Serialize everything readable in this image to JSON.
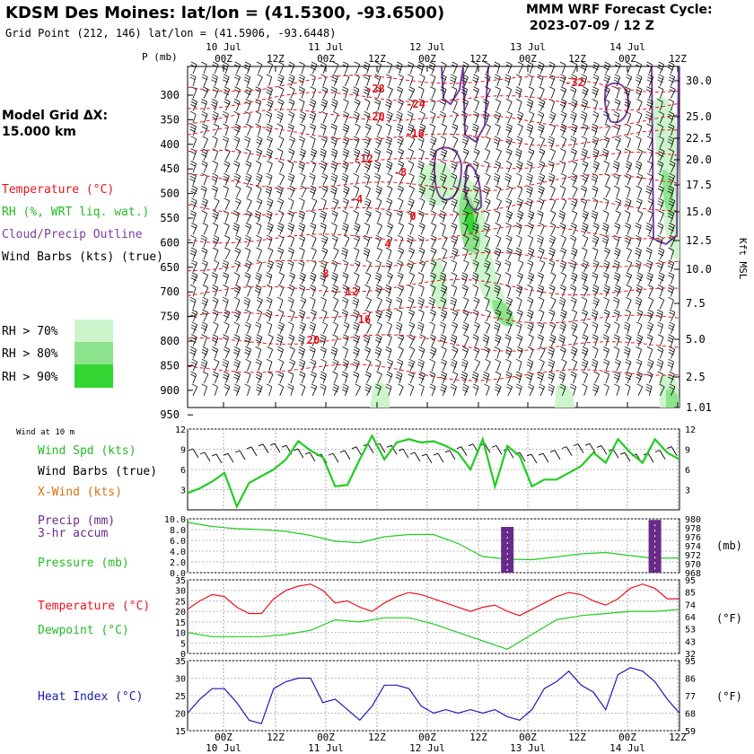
{
  "header": {
    "title": "KDSM Des Moines:  lat/lon = (41.5300, -93.6500)",
    "grid_point": "Grid Point (212, 146) lat/lon = (41.5906, -93.6448)",
    "cycle_line1": "MMM WRF Forecast Cycle:",
    "cycle_line2": "2023-07-09 / 12  Z"
  },
  "time_axis": {
    "day_labels": [
      "10 Jul",
      "11 Jul",
      "12 Jul",
      "13 Jul",
      "14 Jul"
    ],
    "hour_labels": [
      "00Z",
      "12Z",
      "00Z",
      "12Z",
      "00Z",
      "12Z",
      "00Z",
      "12Z",
      "00Z",
      "12Z"
    ],
    "top_p_label": "P (mb)"
  },
  "side_legend": {
    "model_grid_line1": "Model Grid ΔX:",
    "model_grid_line2": " 15.000 km",
    "temperature": "Temperature (°C)",
    "rh": "RH (%, WRT liq. wat.)",
    "cloud": "Cloud/Precip Outline",
    "barbs": "Wind Barbs (kts) (true)",
    "rh70": "RH > 70%",
    "rh80": "RH > 80%",
    "rh90": "RH > 90%",
    "wind_10m": "Wind at 10 m",
    "wind_spd": "Wind Spd (kts)",
    "wind_barbs": "Wind Barbs (true)",
    "xwind": "X-Wind (kts)",
    "precip1": "Precip (mm)",
    "precip2": "3-hr accum",
    "pressure": "Pressure (mb)",
    "temp2m": "Temperature (°C)",
    "dewpoint": "Dewpoint (°C)",
    "heat_index": "Heat Index (°C)",
    "unit_mb": "(mb)",
    "unit_f1": "(°F)",
    "unit_f2": "(°F)",
    "kft_label": "Kft MSL"
  },
  "colors": {
    "temperature": "#e8141c",
    "rh": "#22cc22",
    "cloud": "#7a3fa0",
    "barbs": "#000000",
    "xwind": "#e07010",
    "precip": "#6a2a8a",
    "pressure": "#22cc22",
    "dewpoint": "#22cc22",
    "heat_index": "#1a1ab4"
  },
  "chart_data": [
    {
      "type": "heatmap",
      "panel": "cross-section",
      "y_pressure_ticks": [
        "300",
        "350",
        "400",
        "450",
        "500",
        "550",
        "600",
        "650",
        "700",
        "750",
        "800",
        "850",
        "900",
        "950"
      ],
      "y_height_kft_ticks": [
        "30.0",
        "25.0",
        "22.5",
        "20.0",
        "17.5",
        "15.0",
        "12.5",
        "10.0",
        "7.5",
        "5.0",
        "2.5",
        "1.01"
      ],
      "temperature_contour_labels": [
        "-28",
        "-24",
        "-20",
        "-16",
        "-12",
        "-8",
        "-4",
        "0",
        "4",
        "8",
        "12",
        "16",
        "20",
        "-32"
      ]
    },
    {
      "type": "line",
      "panel": "wind",
      "ylim": [
        0,
        12
      ],
      "yticks": [
        "3",
        "6",
        "9",
        "12"
      ],
      "series": [
        {
          "name": "Wind Spd (kts)",
          "x": [
            0,
            3,
            6,
            9,
            12,
            15,
            18,
            21,
            24,
            27,
            30,
            33,
            36,
            39,
            42,
            45,
            48,
            51,
            54,
            57,
            60,
            63,
            66,
            69,
            72,
            75,
            78,
            81,
            84,
            87,
            90,
            93,
            96,
            99,
            102,
            105,
            108,
            111,
            114,
            117,
            120
          ],
          "values": [
            2.5,
            3.2,
            4.2,
            5.5,
            0.5,
            4.0,
            5.0,
            6.0,
            7.5,
            10.2,
            8.8,
            7.8,
            3.5,
            3.7,
            7.5,
            11.0,
            7.5,
            10.0,
            10.5,
            10.0,
            10.2,
            9.5,
            8.5,
            6.0,
            10.5,
            3.5,
            9.5,
            8.0,
            3.5,
            4.5,
            4.5,
            5.5,
            6.5,
            8.5,
            7.0,
            10.5,
            8.5,
            7.0,
            10.5,
            8.5,
            7.5
          ]
        }
      ]
    },
    {
      "type": "line",
      "panel": "precip-pressure",
      "ylim": [
        0,
        10
      ],
      "yticks": [
        "0.0",
        "2.0",
        "4.0",
        "6.0",
        "8.0",
        "10.0"
      ],
      "y2ticks": [
        "968",
        "970",
        "972",
        "974",
        "976",
        "978",
        "980"
      ],
      "series": [
        {
          "name": "Pressure (mb)",
          "x": [
            0,
            6,
            12,
            18,
            24,
            30,
            36,
            42,
            48,
            54,
            60,
            66,
            72,
            78,
            84,
            90,
            96,
            102,
            108,
            114,
            120
          ],
          "values": [
            979.2,
            978.3,
            977.8,
            977.6,
            977.2,
            976.3,
            975.0,
            974.7,
            976.0,
            976.5,
            976.5,
            974.5,
            971.6,
            971.0,
            970.9,
            971.5,
            972.2,
            972.5,
            971.8,
            971.2,
            971.3
          ]
        },
        {
          "name": "Precip (mm)",
          "x": [
            78,
            114
          ],
          "values": [
            8.5,
            9.8
          ]
        }
      ]
    },
    {
      "type": "line",
      "panel": "temperature",
      "ylim": [
        0,
        35
      ],
      "yticks": [
        "0",
        "5",
        "10",
        "15",
        "20",
        "25",
        "30",
        "35"
      ],
      "y2ticks": [
        "32",
        "43",
        "53",
        "64",
        "74",
        "85",
        "95"
      ],
      "series": [
        {
          "name": "Temperature (°C)",
          "x": [
            0,
            3,
            6,
            9,
            12,
            15,
            18,
            21,
            24,
            27,
            30,
            33,
            36,
            39,
            42,
            45,
            48,
            51,
            54,
            57,
            60,
            63,
            66,
            69,
            72,
            75,
            78,
            81,
            84,
            87,
            90,
            93,
            96,
            99,
            102,
            105,
            108,
            111,
            114,
            117,
            120
          ],
          "values": [
            21,
            25,
            28,
            27,
            22,
            19,
            19,
            26,
            30,
            32,
            33,
            30,
            24,
            25,
            22,
            20,
            24,
            27,
            29,
            28,
            26,
            24,
            22,
            20,
            22,
            23,
            20,
            18,
            21,
            24,
            27,
            29,
            28,
            25,
            23,
            26,
            31,
            33,
            31,
            26,
            26
          ]
        },
        {
          "name": "Dewpoint (°C)",
          "x": [
            0,
            6,
            12,
            18,
            24,
            30,
            36,
            42,
            48,
            54,
            60,
            66,
            72,
            78,
            84,
            90,
            96,
            102,
            108,
            114,
            120
          ],
          "values": [
            10,
            8,
            8,
            8,
            9,
            11,
            16,
            15,
            17,
            17,
            14,
            10,
            6,
            2,
            9,
            16,
            18,
            19,
            20,
            20,
            21
          ]
        }
      ]
    },
    {
      "type": "line",
      "panel": "heat-index",
      "ylim": [
        15,
        35
      ],
      "yticks": [
        "15",
        "20",
        "25",
        "30",
        "35"
      ],
      "y2ticks": [
        "59",
        "68",
        "77",
        "86",
        "95"
      ],
      "series": [
        {
          "name": "Heat Index (°C)",
          "x": [
            0,
            3,
            6,
            9,
            12,
            15,
            18,
            21,
            24,
            27,
            30,
            33,
            36,
            39,
            42,
            45,
            48,
            51,
            54,
            57,
            60,
            63,
            66,
            69,
            72,
            75,
            78,
            81,
            84,
            87,
            90,
            93,
            96,
            99,
            102,
            105,
            108,
            111,
            114,
            117,
            120
          ],
          "values": [
            20,
            24,
            27,
            27,
            23,
            18,
            17,
            27,
            29,
            30,
            30,
            23,
            24,
            21,
            18,
            22,
            28,
            28,
            27,
            22,
            20,
            21,
            20,
            21,
            20,
            21,
            19,
            18,
            21,
            27,
            29,
            32,
            28,
            26,
            21,
            31,
            33,
            32,
            29,
            24,
            20
          ]
        }
      ]
    }
  ]
}
